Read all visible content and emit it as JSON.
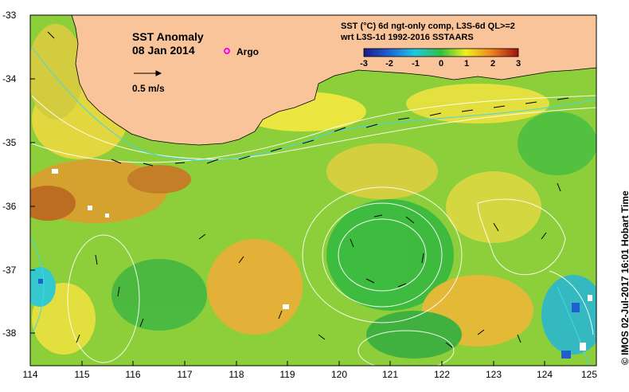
{
  "map": {
    "title": "SST Anomaly",
    "date": "08 Jan 2014",
    "argo_label": "Argo",
    "scale_label": "0.5 m/s",
    "colorbar_title_line1": "SST (°C) 6d ngt-only comp, L3S-6d QL>=2",
    "colorbar_title_line2": "wrt L3S-1d 1992-2016 SSTAARS",
    "colorbar_ticks": [
      "-3",
      "-2",
      "-1",
      "0",
      "1",
      "2",
      "3"
    ],
    "colorbar_colors": [
      "#1a1a8c",
      "#1f5fd0",
      "#20c8e0",
      "#30c040",
      "#f0f020",
      "#f08020",
      "#a01010"
    ],
    "y_ticks": [
      "-33",
      "-34",
      "-35",
      "-36",
      "-37",
      "-38"
    ],
    "x_ticks": [
      "114",
      "115",
      "116",
      "117",
      "118",
      "119",
      "120",
      "121",
      "122",
      "123",
      "124",
      "125"
    ],
    "credit": "© IMOS 02-Jul-2017 16:01 Hobart Time",
    "land_color": "#f9c49a"
  }
}
